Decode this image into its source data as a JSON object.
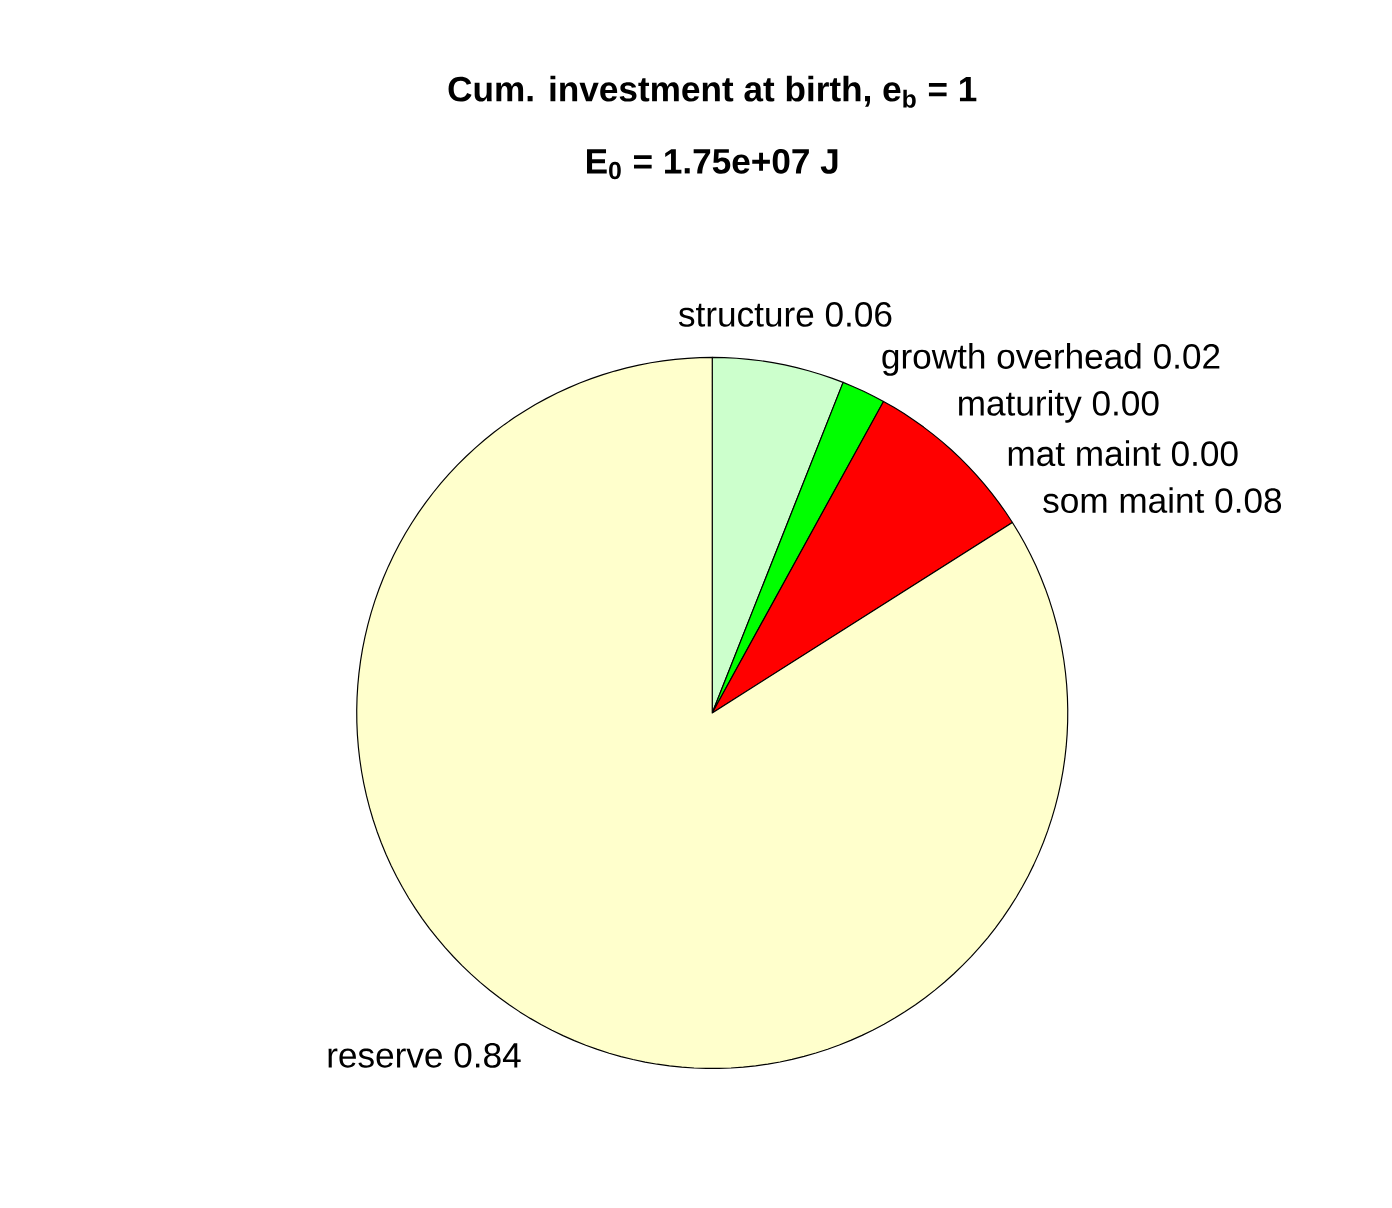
{
  "chart_data": {
    "type": "pie",
    "title": "Cum. investment at birth, e$_{b}$ = 1",
    "subtitle": "E$_{0}$ = 1.75e+07 J",
    "categories": [
      "structure",
      "growth overhead",
      "maturity",
      "mat maint",
      "som maint",
      "reserve"
    ],
    "values": [
      0.06,
      0.02,
      0.0,
      0.0,
      0.08,
      0.84
    ],
    "value_labels": [
      "0.06",
      "0.02",
      "0.00",
      "0.00",
      "0.08",
      "0.84"
    ],
    "colors": [
      "#ccffcc",
      "#00ff00",
      "#0000ff",
      "#000080",
      "#ff0000",
      "#ffffcc"
    ]
  }
}
